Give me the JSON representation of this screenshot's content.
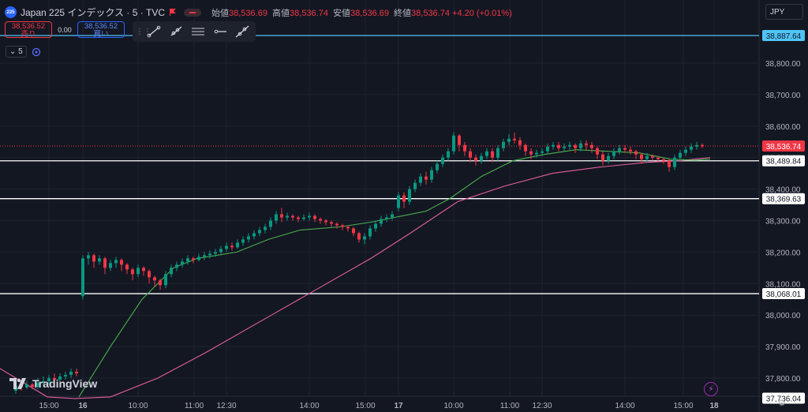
{
  "header": {
    "symbol_badge": "225",
    "title": "Japan 225 インデックス · 5 · TVC",
    "open_label": "始値",
    "open_value": "38,536.69",
    "high_label": "高値",
    "high_value": "38,536.74",
    "low_label": "安値",
    "low_value": "38,536.69",
    "close_label": "終値",
    "close_value": "38,536.74",
    "change": "+4.20 (+0.01%)"
  },
  "trade": {
    "sell_price": "38,536.52",
    "sell_label": "売り",
    "spread": "0.00",
    "buy_price": "38,536.52",
    "buy_label": "買い"
  },
  "toolbar": {
    "tools": [
      "trend-line-icon",
      "ray-icon",
      "parallel-lines-icon",
      "horizontal-ray-icon",
      "extended-line-icon"
    ]
  },
  "interval": {
    "value": "5"
  },
  "currency": "JPY",
  "logo_text": "TradingView",
  "colors": {
    "up": "#089981",
    "down": "#f23645",
    "ma_fast": "#4caf50",
    "ma_slow": "#e05f9d",
    "hline": "#ffffff",
    "cyan_line": "#4fc3f7"
  },
  "chart_data": {
    "type": "candlestick",
    "ylim": [
      37700,
      38920
    ],
    "y_ticks": [
      37800,
      37900,
      38000,
      38100,
      38200,
      38300,
      38400,
      38500,
      38600,
      38700,
      38800
    ],
    "x_labels": [
      "15:00",
      "16",
      "10:00",
      "11:00",
      "12:30",
      "14:00",
      "15:00",
      "17",
      "10:00",
      "11:00",
      "12:30",
      "14:00",
      "15:00",
      "18"
    ],
    "price_labels": [
      {
        "value": 38887.64,
        "text": "38,887.64",
        "kind": "cyan"
      },
      {
        "value": 38536.74,
        "text": "38,536.74",
        "kind": "current"
      },
      {
        "value": 38489.84,
        "text": "38,489.84",
        "kind": "hline"
      },
      {
        "value": 38369.63,
        "text": "38,369.63",
        "kind": "hline"
      },
      {
        "value": 38068.01,
        "text": "38,068.01",
        "kind": "hline"
      },
      {
        "value": 37736.04,
        "text": "37,736.04",
        "kind": "low"
      }
    ],
    "ma_slow": [
      [
        0,
        37830
      ],
      [
        60,
        37740
      ],
      [
        95,
        37735
      ],
      [
        140,
        37740
      ],
      [
        200,
        37800
      ],
      [
        260,
        37880
      ],
      [
        330,
        37980
      ],
      [
        400,
        38080
      ],
      [
        470,
        38180
      ],
      [
        520,
        38260
      ],
      [
        580,
        38360
      ],
      [
        640,
        38410
      ],
      [
        700,
        38450
      ],
      [
        760,
        38470
      ],
      [
        820,
        38485
      ],
      [
        860,
        38490
      ],
      [
        900,
        38500
      ]
    ],
    "ma_fast": [
      [
        100,
        37740
      ],
      [
        140,
        37900
      ],
      [
        180,
        38050
      ],
      [
        220,
        38150
      ],
      [
        250,
        38180
      ],
      [
        300,
        38200
      ],
      [
        340,
        38240
      ],
      [
        380,
        38270
      ],
      [
        430,
        38280
      ],
      [
        470,
        38295
      ],
      [
        500,
        38310
      ],
      [
        540,
        38330
      ],
      [
        570,
        38370
      ],
      [
        610,
        38440
      ],
      [
        650,
        38490
      ],
      [
        690,
        38510
      ],
      [
        730,
        38525
      ],
      [
        770,
        38520
      ],
      [
        810,
        38515
      ],
      [
        850,
        38495
      ],
      [
        880,
        38492
      ],
      [
        900,
        38495
      ]
    ],
    "candles": [
      [
        20,
        37760,
        37775,
        37750,
        37780
      ],
      [
        27,
        37775,
        37770,
        37760,
        37785
      ],
      [
        34,
        37770,
        37780,
        37765,
        37790
      ],
      [
        41,
        37780,
        37772,
        37765,
        37785
      ],
      [
        48,
        37772,
        37785,
        37765,
        37800
      ],
      [
        55,
        37785,
        37790,
        37775,
        37805
      ],
      [
        62,
        37790,
        37800,
        37780,
        37810
      ],
      [
        69,
        37800,
        37795,
        37785,
        37815
      ],
      [
        76,
        37795,
        37805,
        37790,
        37815
      ],
      [
        83,
        37805,
        37810,
        37795,
        37820
      ],
      [
        90,
        37810,
        37820,
        37800,
        37830
      ],
      [
        97,
        37820,
        37815,
        37805,
        37830
      ],
      [
        105,
        38060,
        38180,
        38050,
        38190
      ],
      [
        112,
        38180,
        38190,
        38160,
        38200
      ],
      [
        119,
        38190,
        38170,
        38150,
        38195
      ],
      [
        126,
        38170,
        38180,
        38160,
        38190
      ],
      [
        133,
        38180,
        38150,
        38130,
        38185
      ],
      [
        140,
        38150,
        38165,
        38140,
        38175
      ],
      [
        147,
        38165,
        38175,
        38150,
        38185
      ],
      [
        154,
        38175,
        38160,
        38140,
        38180
      ],
      [
        161,
        38160,
        38145,
        38130,
        38165
      ],
      [
        168,
        38145,
        38130,
        38110,
        38150
      ],
      [
        175,
        38130,
        38150,
        38120,
        38160
      ],
      [
        182,
        38150,
        38140,
        38125,
        38155
      ],
      [
        189,
        38140,
        38120,
        38100,
        38145
      ],
      [
        196,
        38120,
        38110,
        38090,
        38125
      ],
      [
        203,
        38110,
        38095,
        38080,
        38115
      ],
      [
        210,
        38095,
        38130,
        38085,
        38140
      ],
      [
        217,
        38130,
        38150,
        38120,
        38160
      ],
      [
        224,
        38150,
        38160,
        38140,
        38170
      ],
      [
        231,
        38160,
        38170,
        38150,
        38180
      ],
      [
        238,
        38170,
        38180,
        38160,
        38190
      ],
      [
        245,
        38180,
        38175,
        38165,
        38185
      ],
      [
        252,
        38175,
        38185,
        38170,
        38195
      ],
      [
        259,
        38185,
        38190,
        38175,
        38200
      ],
      [
        266,
        38190,
        38195,
        38180,
        38205
      ],
      [
        273,
        38195,
        38200,
        38185,
        38210
      ],
      [
        280,
        38200,
        38210,
        38190,
        38220
      ],
      [
        287,
        38210,
        38220,
        38200,
        38230
      ],
      [
        294,
        38220,
        38215,
        38205,
        38230
      ],
      [
        301,
        38215,
        38230,
        38210,
        38240
      ],
      [
        308,
        38230,
        38240,
        38220,
        38250
      ],
      [
        315,
        38240,
        38250,
        38230,
        38260
      ],
      [
        322,
        38250,
        38260,
        38240,
        38270
      ],
      [
        329,
        38260,
        38270,
        38250,
        38280
      ],
      [
        336,
        38270,
        38280,
        38260,
        38290
      ],
      [
        343,
        38280,
        38300,
        38270,
        38310
      ],
      [
        350,
        38300,
        38320,
        38290,
        38330
      ],
      [
        357,
        38320,
        38310,
        38295,
        38340
      ],
      [
        364,
        38310,
        38315,
        38300,
        38325
      ],
      [
        371,
        38315,
        38310,
        38300,
        38320
      ],
      [
        378,
        38310,
        38305,
        38295,
        38315
      ],
      [
        385,
        38305,
        38310,
        38300,
        38320
      ],
      [
        392,
        38310,
        38315,
        38300,
        38325
      ],
      [
        399,
        38315,
        38305,
        38295,
        38320
      ],
      [
        406,
        38305,
        38300,
        38290,
        38310
      ],
      [
        413,
        38300,
        38295,
        38285,
        38305
      ],
      [
        420,
        38295,
        38290,
        38280,
        38300
      ],
      [
        427,
        38290,
        38285,
        38275,
        38295
      ],
      [
        434,
        38285,
        38280,
        38270,
        38290
      ],
      [
        441,
        38280,
        38275,
        38265,
        38285
      ],
      [
        448,
        38275,
        38260,
        38250,
        38280
      ],
      [
        455,
        38260,
        38240,
        38230,
        38265
      ],
      [
        462,
        38240,
        38250,
        38225,
        38260
      ],
      [
        469,
        38250,
        38275,
        38240,
        38285
      ],
      [
        476,
        38275,
        38290,
        38265,
        38300
      ],
      [
        483,
        38290,
        38305,
        38280,
        38315
      ],
      [
        490,
        38305,
        38310,
        38295,
        38320
      ],
      [
        497,
        38310,
        38320,
        38300,
        38330
      ],
      [
        505,
        38340,
        38380,
        38330,
        38390
      ],
      [
        512,
        38380,
        38360,
        38340,
        38390
      ],
      [
        519,
        38360,
        38400,
        38350,
        38410
      ],
      [
        526,
        38400,
        38420,
        38390,
        38430
      ],
      [
        533,
        38420,
        38440,
        38410,
        38450
      ],
      [
        540,
        38440,
        38430,
        38415,
        38455
      ],
      [
        547,
        38430,
        38460,
        38420,
        38470
      ],
      [
        554,
        38460,
        38480,
        38450,
        38490
      ],
      [
        561,
        38480,
        38500,
        38470,
        38510
      ],
      [
        568,
        38500,
        38520,
        38490,
        38530
      ],
      [
        575,
        38520,
        38570,
        38510,
        38580
      ],
      [
        582,
        38570,
        38540,
        38520,
        38575
      ],
      [
        589,
        38540,
        38520,
        38505,
        38550
      ],
      [
        596,
        38520,
        38500,
        38485,
        38530
      ],
      [
        603,
        38500,
        38490,
        38475,
        38510
      ],
      [
        610,
        38490,
        38505,
        38480,
        38515
      ],
      [
        617,
        38505,
        38520,
        38495,
        38530
      ],
      [
        624,
        38520,
        38500,
        38485,
        38530
      ],
      [
        631,
        38500,
        38530,
        38490,
        38540
      ],
      [
        638,
        38530,
        38550,
        38520,
        38560
      ],
      [
        645,
        38550,
        38560,
        38540,
        38575
      ],
      [
        652,
        38560,
        38555,
        38545,
        38580
      ],
      [
        659,
        38555,
        38540,
        38525,
        38565
      ],
      [
        666,
        38540,
        38520,
        38505,
        38545
      ],
      [
        673,
        38520,
        38510,
        38495,
        38530
      ],
      [
        680,
        38510,
        38515,
        38500,
        38525
      ],
      [
        687,
        38515,
        38520,
        38505,
        38530
      ],
      [
        694,
        38520,
        38535,
        38510,
        38545
      ],
      [
        701,
        38535,
        38540,
        38525,
        38550
      ],
      [
        708,
        38540,
        38530,
        38520,
        38550
      ],
      [
        715,
        38530,
        38535,
        38520,
        38545
      ],
      [
        722,
        38535,
        38540,
        38525,
        38550
      ],
      [
        729,
        38540,
        38530,
        38515,
        38545
      ],
      [
        736,
        38530,
        38545,
        38520,
        38555
      ],
      [
        743,
        38545,
        38540,
        38525,
        38555
      ],
      [
        750,
        38540,
        38530,
        38515,
        38550
      ],
      [
        757,
        38530,
        38510,
        38495,
        38535
      ],
      [
        764,
        38510,
        38490,
        38475,
        38520
      ],
      [
        771,
        38490,
        38505,
        38480,
        38515
      ],
      [
        778,
        38505,
        38520,
        38495,
        38530
      ],
      [
        785,
        38520,
        38530,
        38510,
        38540
      ],
      [
        792,
        38530,
        38525,
        38515,
        38540
      ],
      [
        799,
        38525,
        38520,
        38510,
        38535
      ],
      [
        806,
        38520,
        38510,
        38495,
        38525
      ],
      [
        813,
        38510,
        38495,
        38480,
        38515
      ],
      [
        820,
        38495,
        38505,
        38485,
        38515
      ],
      [
        827,
        38505,
        38500,
        38490,
        38510
      ],
      [
        834,
        38500,
        38495,
        38485,
        38505
      ],
      [
        841,
        38495,
        38490,
        38480,
        38500
      ],
      [
        848,
        38490,
        38470,
        38455,
        38495
      ],
      [
        855,
        38470,
        38500,
        38460,
        38510
      ],
      [
        862,
        38500,
        38515,
        38490,
        38525
      ],
      [
        869,
        38515,
        38525,
        38505,
        38535
      ],
      [
        876,
        38525,
        38535,
        38515,
        38545
      ],
      [
        883,
        38535,
        38540,
        38525,
        38550
      ],
      [
        890,
        38540,
        38536,
        38530,
        38545
      ]
    ]
  }
}
